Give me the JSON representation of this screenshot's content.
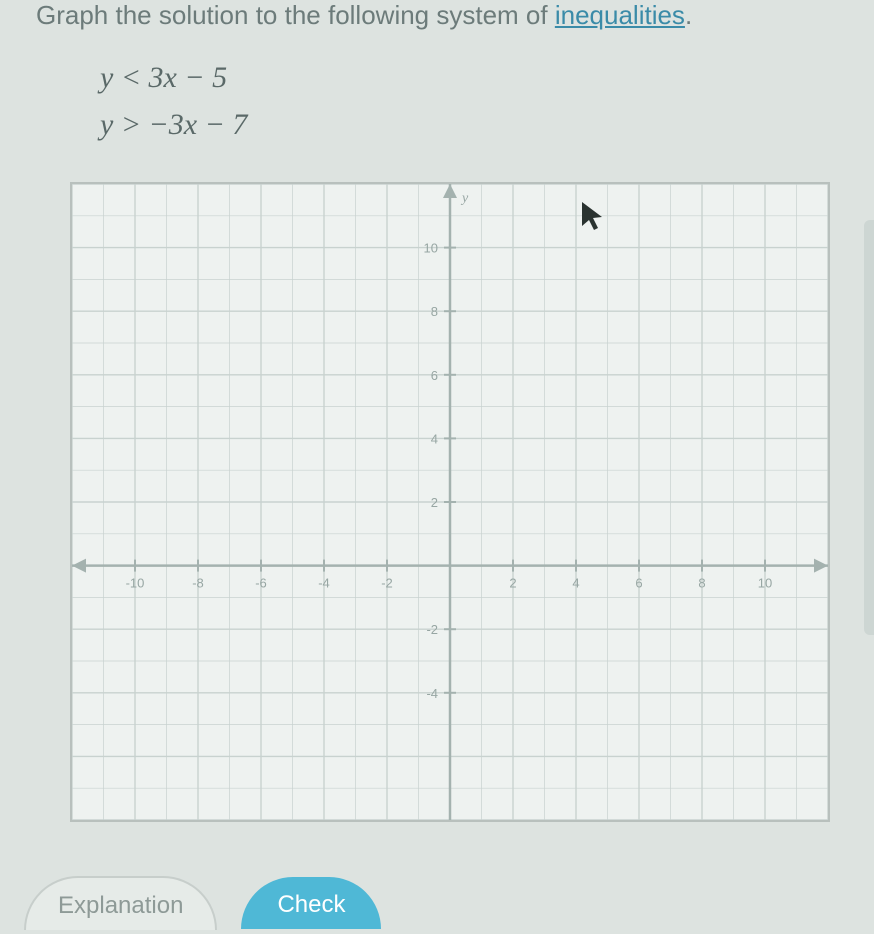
{
  "instruction": {
    "prefix": "Graph the solution to the following system of ",
    "link_text": "inequalities",
    "suffix": "."
  },
  "equations": {
    "eq1": "y < 3x − 5",
    "eq2": "y > −3x − 7"
  },
  "graph": {
    "type": "coordinate-plane",
    "xlim": [
      -12,
      12
    ],
    "ylim": [
      -8,
      12
    ],
    "x_ticks": [
      -10,
      -8,
      -6,
      -4,
      -2,
      2,
      4,
      6,
      8,
      10
    ],
    "x_tick_labels": [
      "-10",
      "-8",
      "-6",
      "-4",
      "-2",
      "2",
      "4",
      "6",
      "8",
      "10"
    ],
    "y_ticks": [
      -4,
      -2,
      2,
      4,
      6,
      8,
      10
    ],
    "y_tick_labels": [
      "-4",
      "-2",
      "2",
      "4",
      "6",
      "8",
      "10"
    ],
    "y_axis_label": "y",
    "grid_color": "#c8d2cf",
    "axis_color": "#a4b2af",
    "tick_label_color": "#97a6a3",
    "tick_label_fontsize": 13,
    "background_color": "#eef2f0"
  },
  "buttons": {
    "explanation_label": "Explanation",
    "check_label": "Check"
  },
  "colors": {
    "page_bg": "#dde3e0",
    "text_muted": "#6c7b7a",
    "link": "#3a8ba8",
    "primary_btn_bg": "#4fb8d6",
    "primary_btn_text": "#ffffff",
    "outline_btn_border": "#c7cecb",
    "outline_btn_text": "#8e9a97",
    "cursor_fill": "#2a3330"
  }
}
